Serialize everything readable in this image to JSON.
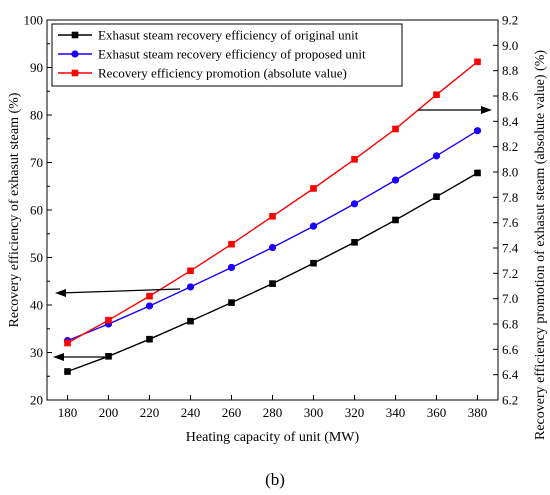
{
  "chart_data": {
    "type": "line",
    "x": [
      180,
      200,
      220,
      240,
      260,
      280,
      300,
      320,
      340,
      360,
      380
    ],
    "xlabel": "Heating capacity of unit (MW)",
    "xlim": [
      170,
      390
    ],
    "xticks": [
      180,
      200,
      220,
      240,
      260,
      280,
      300,
      320,
      340,
      360,
      380
    ],
    "ylabel_left": "Recovery efficiency of exhasut steam (%)",
    "ylim_left": [
      20,
      100
    ],
    "yticks_left": [
      20,
      30,
      40,
      50,
      60,
      70,
      80,
      90,
      100
    ],
    "ylabel_right": "Recovery efficiency promotion of exhasut steam (absolute value) (%)",
    "ylim_right": [
      6.2,
      9.2
    ],
    "yticks_right": [
      "6.2",
      "6.4",
      "6.6",
      "6.8",
      "7.0",
      "7.2",
      "7.4",
      "7.6",
      "7.8",
      "8.0",
      "8.2",
      "8.4",
      "8.6",
      "8.8",
      "9.0",
      "9.2"
    ],
    "grid": false,
    "legend_position": "top-left",
    "series": [
      {
        "name": "Exhasut steam recovery efficiency of original unit",
        "axis": "left",
        "marker": "square",
        "color": "#000000",
        "values": [
          26.0,
          29.2,
          32.8,
          36.6,
          40.5,
          44.5,
          48.8,
          53.2,
          57.9,
          62.8,
          67.8
        ]
      },
      {
        "name": "Exhasut steam recovery efficiency of proposed unit",
        "axis": "left",
        "marker": "circle",
        "color": "#1a00ff",
        "values": [
          32.5,
          36.0,
          39.8,
          43.8,
          47.9,
          52.1,
          56.6,
          61.3,
          66.3,
          71.4,
          76.7
        ]
      },
      {
        "name": "Recovery efficiency promotion (absolute value)",
        "axis": "right",
        "marker": "square",
        "color": "#ff0000",
        "values": [
          6.65,
          6.83,
          7.02,
          7.22,
          7.43,
          7.65,
          7.87,
          8.1,
          8.34,
          8.61,
          8.87
        ]
      }
    ]
  },
  "caption": "(b)"
}
